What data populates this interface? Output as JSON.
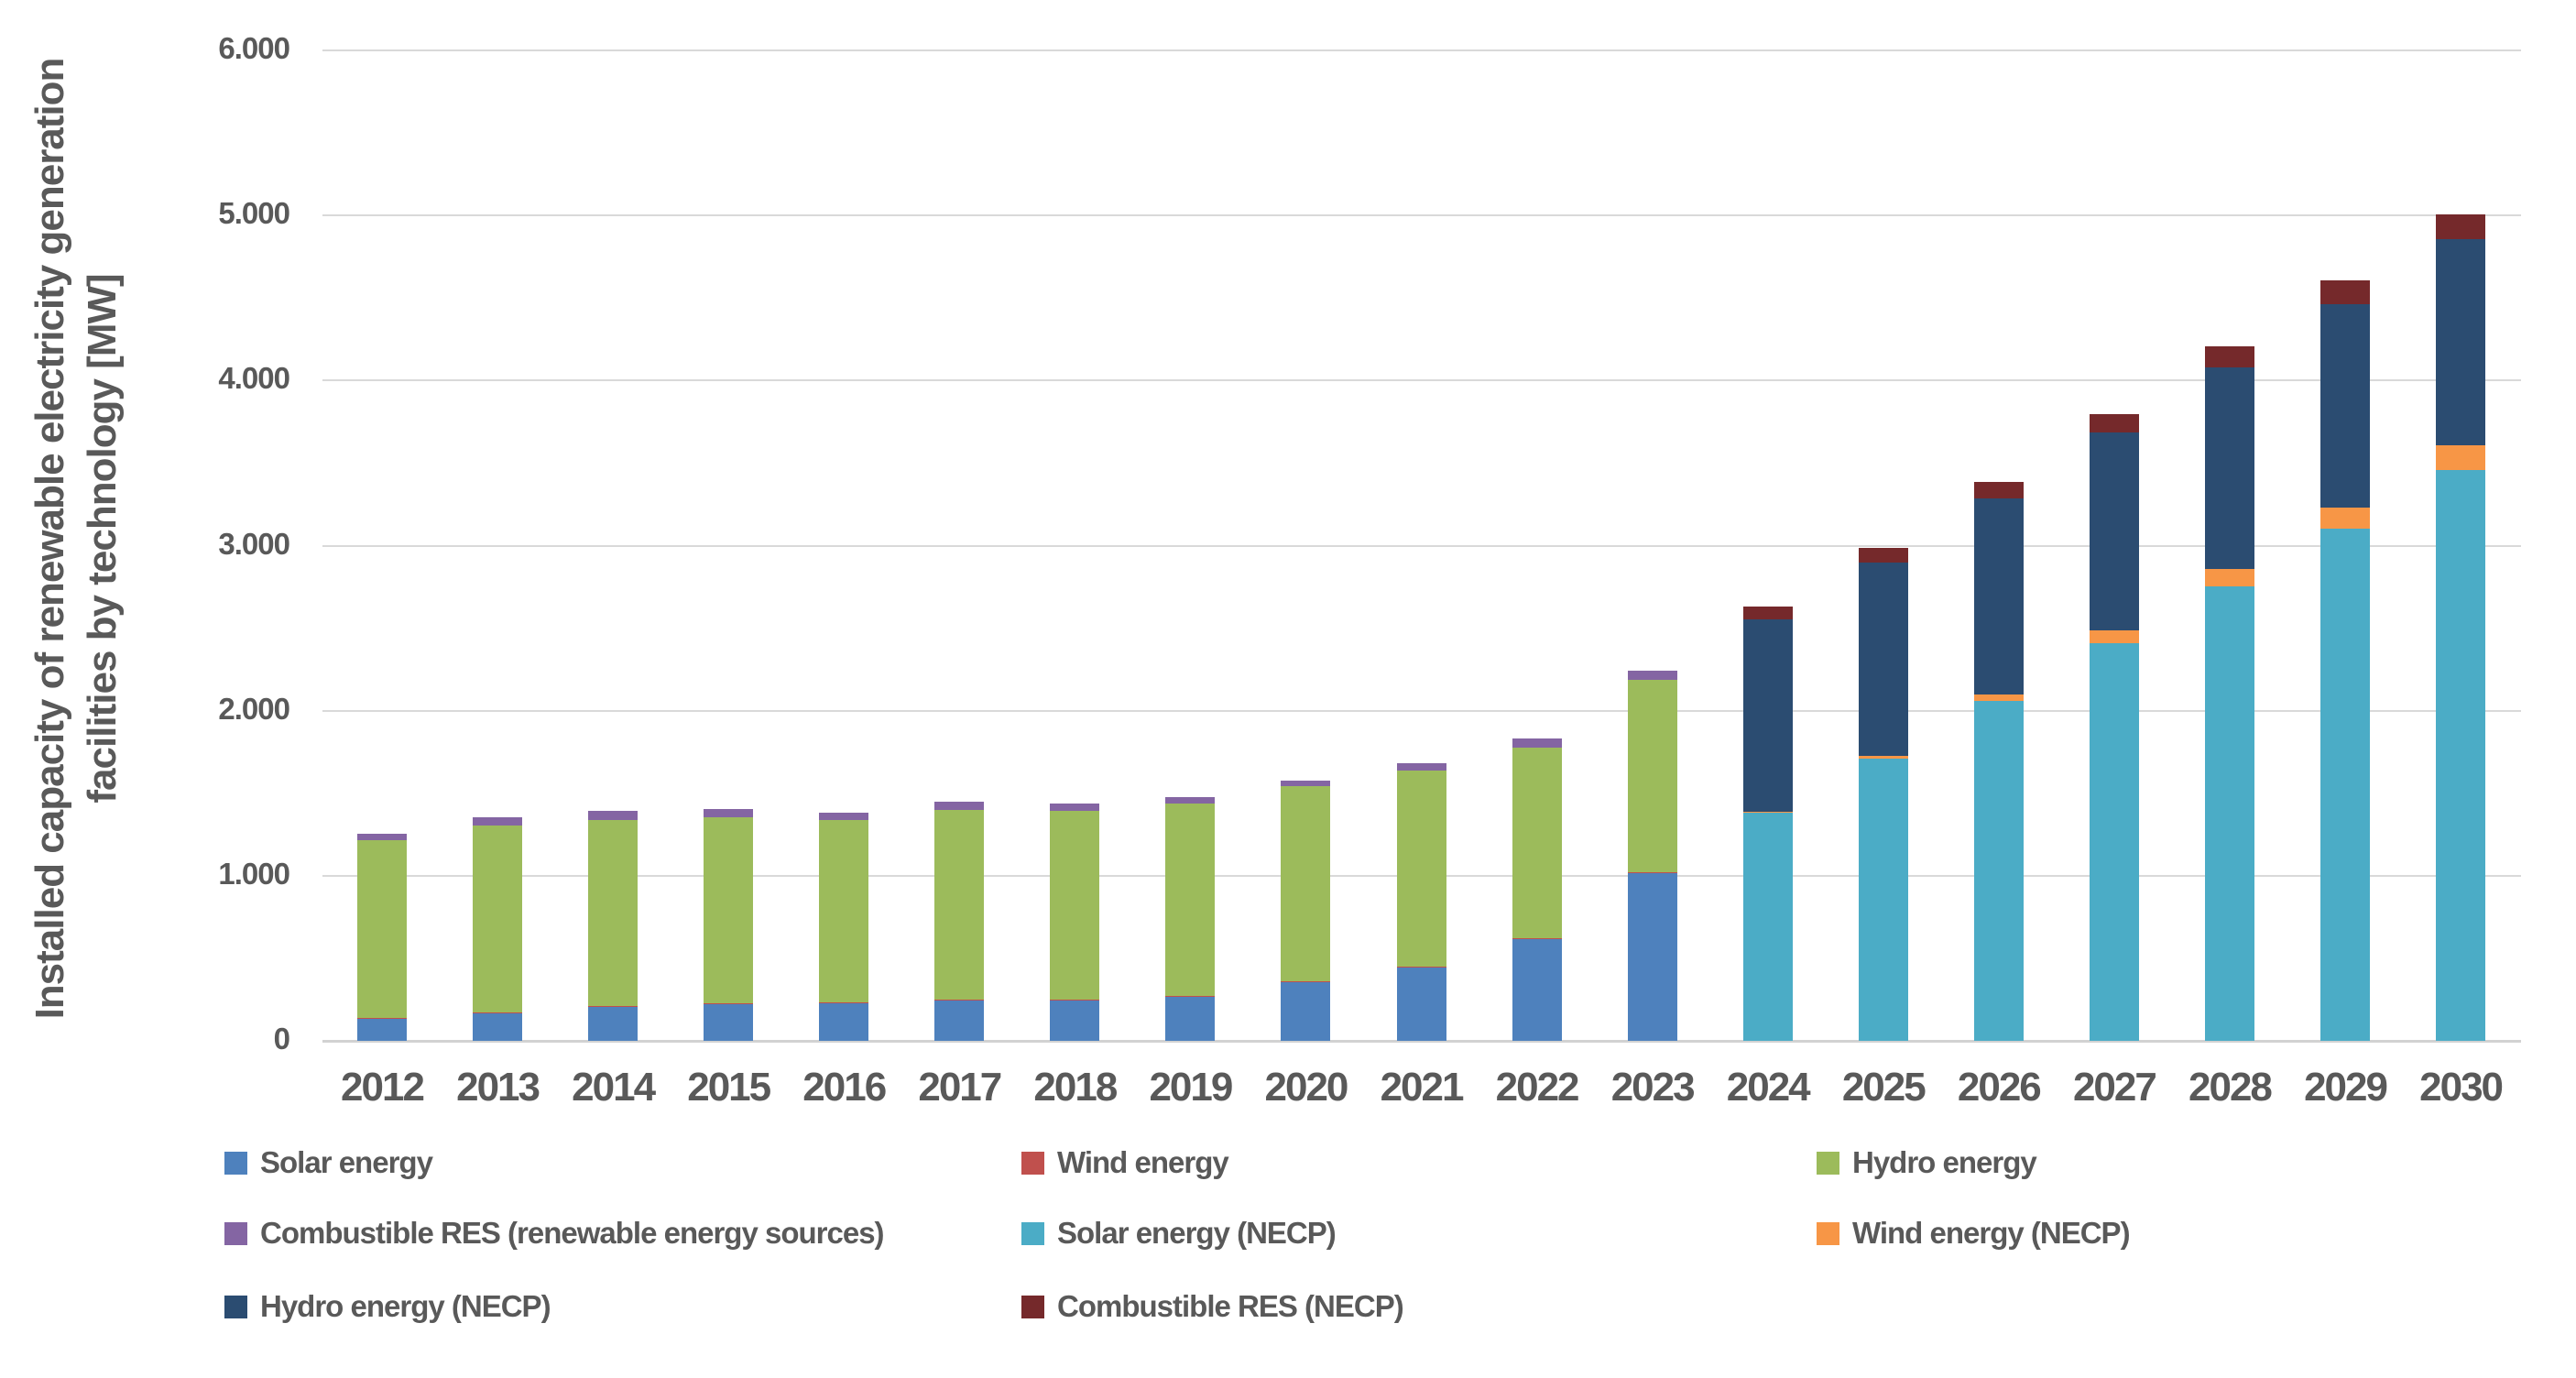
{
  "chart_data": {
    "type": "bar",
    "stacked": true,
    "title": "",
    "ylabel": "Installed capacity of renewable electricity generation facilities by technology [MW]",
    "ylabel_line1": "Installed capacity of renewable electricity generation",
    "ylabel_line2": "facilities by technology [MW]",
    "xlabel": "",
    "ylim": [
      0,
      6000
    ],
    "ytick_interval": 1000,
    "ytick_labels": [
      "0",
      "1.000",
      "2.000",
      "3.000",
      "4.000",
      "5.000",
      "6.000"
    ],
    "grid": "horizontal",
    "legend_position": "bottom",
    "text_color": "#595959",
    "gridline_color": "#d9d9d9",
    "categories": [
      "2012",
      "2013",
      "2014",
      "2015",
      "2016",
      "2017",
      "2018",
      "2019",
      "2020",
      "2021",
      "2022",
      "2023",
      "2024",
      "2025",
      "2026",
      "2027",
      "2028",
      "2029",
      "2030"
    ],
    "series": [
      {
        "name": "Solar energy",
        "color": "#4e81bd",
        "values": [
          133,
          167,
          207,
          222,
          228,
          243,
          243,
          270,
          355,
          446,
          616,
          1016,
          0,
          0,
          0,
          0,
          0,
          0,
          0
        ]
      },
      {
        "name": "Wind energy",
        "color": "#c0504d",
        "values": [
          4,
          4,
          4,
          4,
          4,
          4,
          4,
          4,
          5,
          5,
          5,
          5,
          0,
          0,
          0,
          0,
          0,
          0,
          0
        ]
      },
      {
        "name": "Hydro energy",
        "color": "#9cbb5b",
        "values": [
          1078,
          1135,
          1128,
          1126,
          1104,
          1152,
          1146,
          1165,
          1182,
          1189,
          1156,
          1164,
          0,
          0,
          0,
          0,
          0,
          0,
          0
        ]
      },
      {
        "name": "Combustible RES (renewable energy sources)",
        "color": "#8465a3",
        "values": [
          40,
          46,
          56,
          52,
          44,
          51,
          46,
          40,
          33,
          43,
          53,
          55,
          0,
          0,
          0,
          0,
          0,
          0,
          0
        ]
      },
      {
        "name": "Solar energy (NECP)",
        "color": "#4bacc6",
        "values": [
          0,
          0,
          0,
          0,
          0,
          0,
          0,
          0,
          0,
          0,
          0,
          0,
          1380,
          1710,
          2060,
          2410,
          2755,
          3100,
          3460
        ]
      },
      {
        "name": "Wind energy (NECP)",
        "color": "#f79646",
        "values": [
          0,
          0,
          0,
          0,
          0,
          0,
          0,
          0,
          0,
          0,
          0,
          0,
          5,
          15,
          40,
          75,
          105,
          130,
          150
        ]
      },
      {
        "name": "Hydro energy (NECP)",
        "color": "#2b4c71",
        "values": [
          0,
          0,
          0,
          0,
          0,
          0,
          0,
          0,
          0,
          0,
          0,
          0,
          1170,
          1175,
          1185,
          1200,
          1220,
          1235,
          1245
        ]
      },
      {
        "name": "Combustible RES (NECP)",
        "color": "#75292b",
        "values": [
          0,
          0,
          0,
          0,
          0,
          0,
          0,
          0,
          0,
          0,
          0,
          0,
          77,
          88,
          100,
          112,
          125,
          140,
          152
        ]
      }
    ]
  }
}
